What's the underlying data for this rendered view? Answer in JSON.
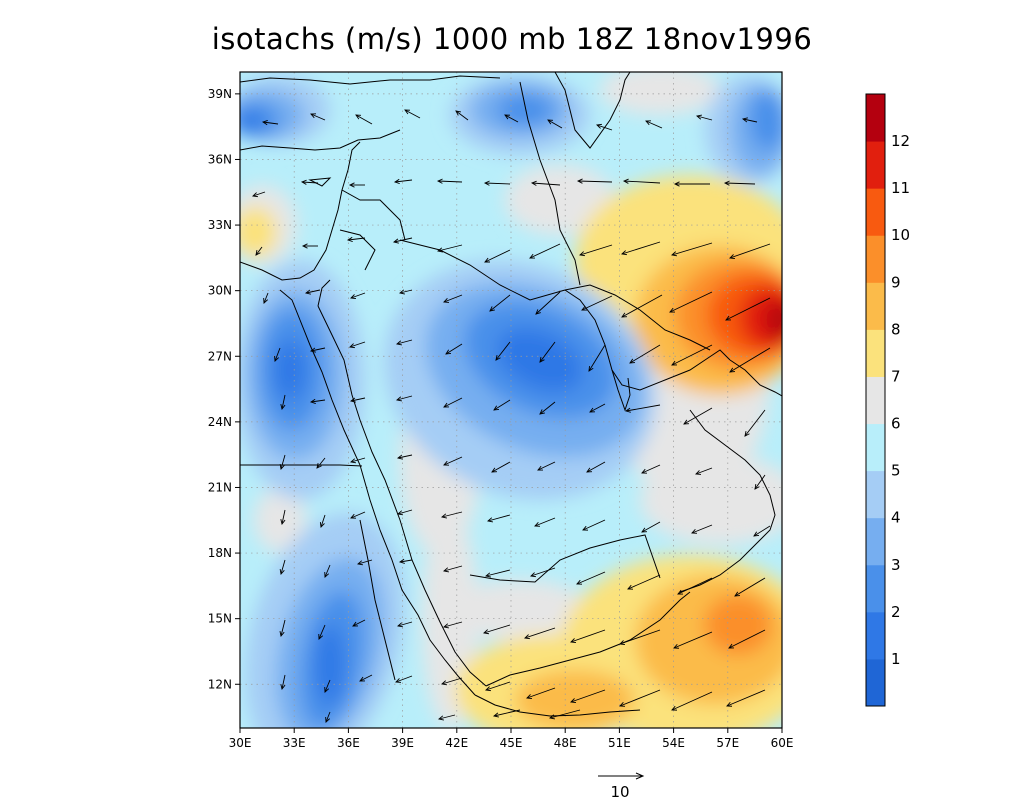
{
  "title": "isotachs (m/s) 1000 mb 18Z 18nov1996",
  "map": {
    "lon_ticks": [
      "30E",
      "33E",
      "36E",
      "39E",
      "42E",
      "45E",
      "48E",
      "51E",
      "54E",
      "57E",
      "60E"
    ],
    "lat_ticks": [
      "12N",
      "15N",
      "18N",
      "21N",
      "24N",
      "27N",
      "30N",
      "33N",
      "36N",
      "39N"
    ],
    "lon_range": [
      30,
      60
    ],
    "lat_range": [
      10,
      40
    ],
    "grid": "dotted"
  },
  "colorbar": {
    "labels": [
      "1",
      "2",
      "3",
      "4",
      "5",
      "6",
      "7",
      "8",
      "9",
      "10",
      "11",
      "12"
    ],
    "colors": [
      "#1f66d6",
      "#2f78e6",
      "#4a90ea",
      "#76aef0",
      "#a5cdf5",
      "#b8eefa",
      "#e6e6e6",
      "#fbe27c",
      "#fbbb4a",
      "#fb8f2a",
      "#f85a10",
      "#e11f0e",
      "#b4000f"
    ]
  },
  "reference_vector": {
    "label": "10",
    "magnitude": 10
  },
  "colors": {
    "frame": "#000000",
    "grid": "#9a9a9a",
    "arrow": "#000000"
  }
}
